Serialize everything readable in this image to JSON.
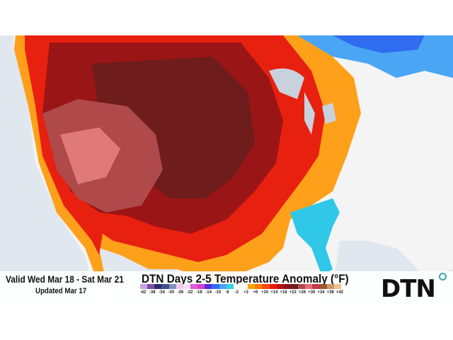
{
  "header": {
    "valid_text": "Valid Wed Mar 18 - Sat Mar 21",
    "updated_text": "Updated Mar 17",
    "title": "DTN Days 2-5 Temperature Anomaly (°F)"
  },
  "legend": {
    "ticks": [
      "-42",
      "-38",
      "-34",
      "-30",
      "-26",
      "-22",
      "-18",
      "-14",
      "-10",
      "-6",
      "-2",
      "+2",
      "+6",
      "+10",
      "+14",
      "+18",
      "+22",
      "+26",
      "+30",
      "+34",
      "+38",
      "+42"
    ],
    "colors": [
      "#c9a3e0",
      "#7a4fa0",
      "#2d2a6e",
      "#3d4f8a",
      "#7f93b8",
      "#f0c8e8",
      "#f7e0f2",
      "#e25ad8",
      "#d43ed0",
      "#5a2ad8",
      "#2f6cf0",
      "#4aa5f5",
      "#30d0e8",
      "#ffffff",
      "#ffffff",
      "#ffa500",
      "#ff7a00",
      "#f54a0a",
      "#e81a0a",
      "#b81010",
      "#8a1515",
      "#6e1c1c",
      "#b04a4a",
      "#e0707a",
      "#c63a4a",
      "#9a5a2a",
      "#c89a6a",
      "#f0c090"
    ]
  },
  "map": {
    "ocean_color": "#e1e7ee",
    "land_color": "#f4f4f4"
  },
  "logo": {
    "text": "DTN",
    "accent": "#3aa6b9"
  }
}
